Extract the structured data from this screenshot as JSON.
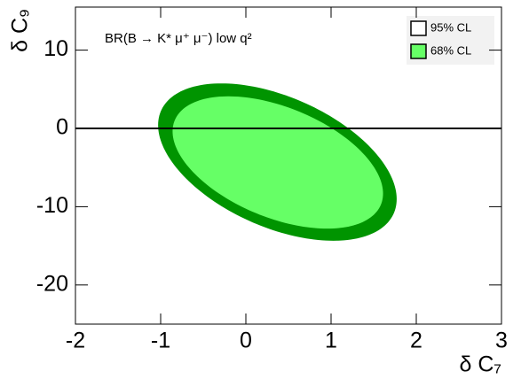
{
  "chart_data": {
    "type": "ellipse",
    "title": "BR(B → K* μ⁺ μ⁻) low q²",
    "x_label": "δ C₇",
    "y_label": "δ C₉",
    "xlim": [
      -2,
      3
    ],
    "xticks": [
      -2,
      -1,
      0,
      1,
      2,
      3
    ],
    "ylim": [
      -25,
      15.5
    ],
    "yticks": [
      -20,
      -10,
      0,
      10
    ],
    "hline": 0,
    "legend": "top-right",
    "series": [
      {
        "name": "95% CL",
        "color": "#009400",
        "legend_color": "#ffffff",
        "center": [
          0.37,
          -4.3
        ],
        "radius": [
          1.4,
          10.05
        ],
        "phase": 118
      },
      {
        "name": "68% CL",
        "color": "#66ff66",
        "legend_color": "#66ff66",
        "center": [
          0.375,
          -4.35
        ],
        "radius": [
          1.235,
          8.45
        ],
        "phase": 118
      }
    ]
  }
}
